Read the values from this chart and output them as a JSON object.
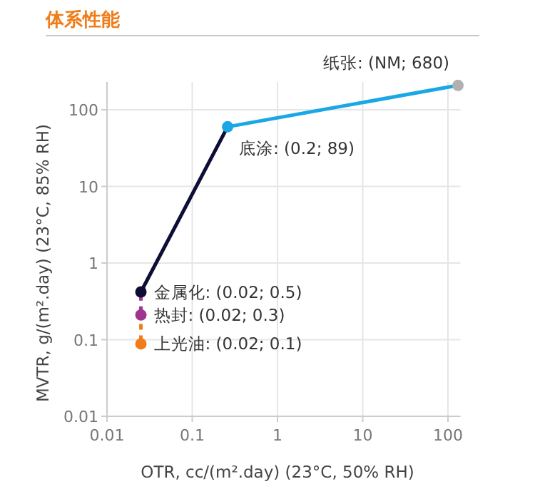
{
  "chart_data": {
    "type": "line",
    "title": "体系性能",
    "xlabel": "OTR, cc/(m².day) (23°C, 50% RH)",
    "ylabel": "MVTR, g/(m².day) (23°C, 85% RH)",
    "log": "xy",
    "grid": true,
    "xlim": [
      0.01,
      140
    ],
    "ylim": [
      0.01,
      230
    ],
    "xticks": [
      0.01,
      0.1,
      1,
      10,
      100
    ],
    "yticks": [
      0.01,
      0.1,
      1,
      10,
      100
    ],
    "marker": "none",
    "series": [
      {
        "color": "#f07d1a",
        "line_style": "dashed",
        "x": [
          0.025,
          0.025
        ],
        "values": [
          0.088,
          0.16
        ]
      },
      {
        "color": "#a0358f",
        "line_style": "dashed",
        "x": [
          0.025,
          0.025
        ],
        "values": [
          0.21,
          0.42
        ]
      },
      {
        "color": "#0d0d35",
        "line_style": "solid",
        "x": [
          0.025,
          0.26
        ],
        "values": [
          0.42,
          60
        ]
      },
      {
        "color": "#1aa7e6",
        "line_style": "solid",
        "x": [
          0.26,
          131
        ],
        "values": [
          60,
          208
        ]
      },
      {
        "type": "scatter",
        "marker": "circle",
        "colors": [
          "#f07d1a",
          "#a0358f",
          "#0d0d35",
          "#1aa7e6",
          "#b0b0b0"
        ],
        "x": [
          0.025,
          0.025,
          0.025,
          0.26,
          131
        ],
        "values": [
          0.088,
          0.21,
          0.42,
          60,
          208
        ]
      }
    ],
    "annotations": [
      {
        "text": "上光油: (0.02; 0.1)",
        "x": 0.025,
        "y": 0.088
      },
      {
        "text": "热封:  (0.02; 0.3)",
        "x": 0.025,
        "y": 0.21
      },
      {
        "text": "金属化: (0.02; 0.5)",
        "x": 0.025,
        "y": 0.42
      },
      {
        "text": "底涂: (0.2; 89)",
        "x": 0.26,
        "y": 60
      },
      {
        "text": "纸张: (NM; 680)",
        "x": 131,
        "y": 208
      }
    ]
  }
}
